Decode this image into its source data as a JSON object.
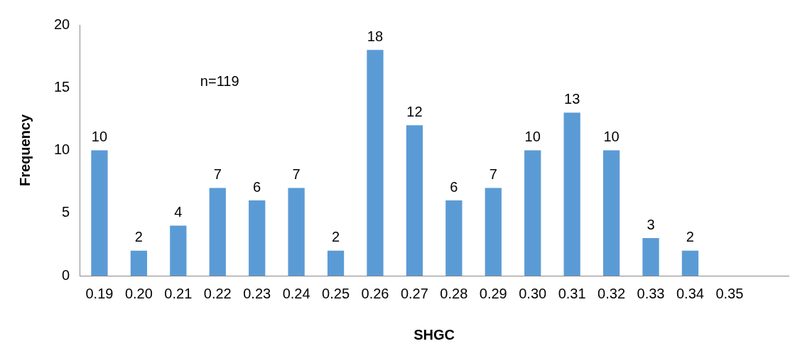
{
  "chart_data": {
    "type": "bar",
    "xlabel": "SHGC",
    "ylabel": "Frequency",
    "categories": [
      "0.19",
      "0.20",
      "0.21",
      "0.22",
      "0.23",
      "0.24",
      "0.25",
      "0.26",
      "0.27",
      "0.28",
      "0.29",
      "0.30",
      "0.31",
      "0.32",
      "0.33",
      "0.34",
      "0.35",
      null
    ],
    "values": [
      10,
      2,
      4,
      7,
      6,
      7,
      2,
      18,
      12,
      6,
      7,
      10,
      13,
      10,
      3,
      2,
      null,
      null
    ],
    "color": "#5b9bd5",
    "ylim": [
      0,
      20
    ],
    "yticks": [
      0,
      5,
      10,
      15,
      20
    ],
    "grid": false,
    "legend": false,
    "data_labels": true,
    "annotations": [
      "n=119"
    ]
  }
}
